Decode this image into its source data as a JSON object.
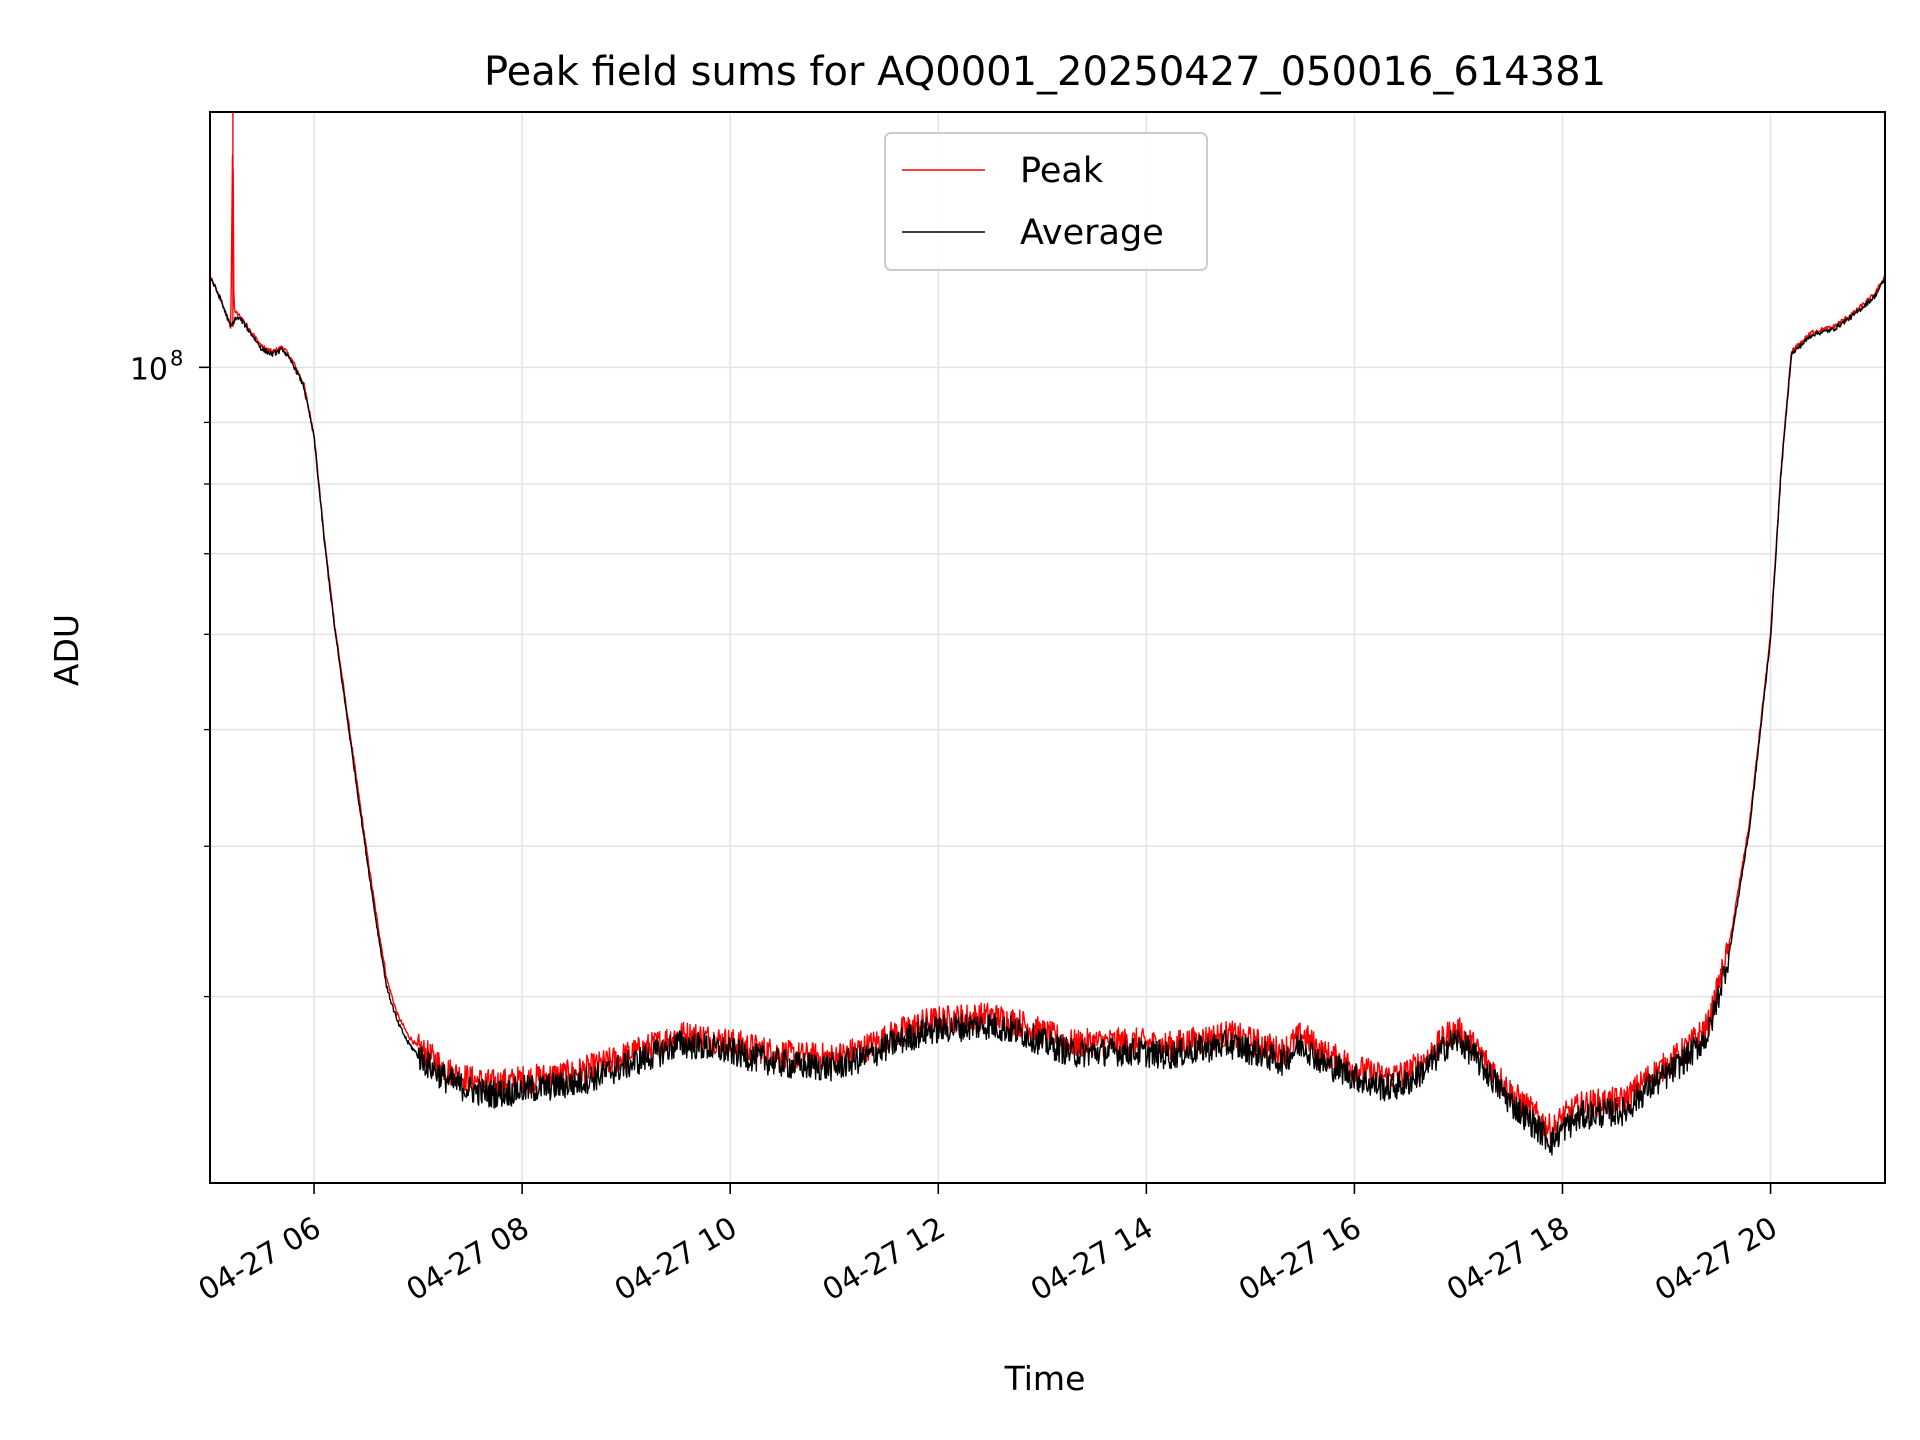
{
  "chart_data": {
    "type": "line",
    "title": "Peak field sums for AQ0001_20250427_050016_614381",
    "xlabel": "Time",
    "ylabel": "ADU",
    "x_unit": "hour of 2025-04-27",
    "xlim": [
      5.0,
      21.1
    ],
    "y_scale": "log",
    "ylim": [
      21000000,
      163000000
    ],
    "x_ticks": [
      {
        "value": 6,
        "label": "04-27 06"
      },
      {
        "value": 8,
        "label": "04-27 08"
      },
      {
        "value": 10,
        "label": "04-27 10"
      },
      {
        "value": 12,
        "label": "04-27 12"
      },
      {
        "value": 14,
        "label": "04-27 14"
      },
      {
        "value": 16,
        "label": "04-27 16"
      },
      {
        "value": 18,
        "label": "04-27 18"
      },
      {
        "value": 20,
        "label": "04-27 20"
      }
    ],
    "y_ticks_major": [
      {
        "value": 100000000,
        "base": "10",
        "exponent": "8"
      }
    ],
    "y_ticks_minor": [
      30000000,
      40000000,
      50000000,
      60000000,
      70000000,
      80000000,
      90000000
    ],
    "grid": true,
    "legend_position": "top-center",
    "series": [
      {
        "name": "Peak",
        "color": "#ff0000",
        "x": [
          5.0,
          5.1,
          5.2,
          5.22,
          5.23,
          5.25,
          5.3,
          5.4,
          5.5,
          5.6,
          5.7,
          5.8,
          5.9,
          6.0,
          6.1,
          6.2,
          6.3,
          6.4,
          6.5,
          6.6,
          6.7,
          6.8,
          6.9,
          7.0,
          7.1,
          7.2,
          7.3,
          7.5,
          7.7,
          7.9,
          8.0,
          8.2,
          8.5,
          8.8,
          9.0,
          9.3,
          9.5,
          9.7,
          10.0,
          10.3,
          10.6,
          11.0,
          11.3,
          11.6,
          11.9,
          12.2,
          12.5,
          12.8,
          13.0,
          13.3,
          13.6,
          13.9,
          14.2,
          14.5,
          14.8,
          15.1,
          15.3,
          15.5,
          15.7,
          15.9,
          16.1,
          16.3,
          16.5,
          16.7,
          16.9,
          17.0,
          17.1,
          17.3,
          17.5,
          17.7,
          17.9,
          18.0,
          18.2,
          18.4,
          18.6,
          18.8,
          19.0,
          19.2,
          19.4,
          19.6,
          19.8,
          20.0,
          20.1,
          20.2,
          20.4,
          20.6,
          20.8,
          21.0,
          21.1
        ],
        "y": [
          119000000,
          114000000,
          108000000,
          160000000,
          112000000,
          111000000,
          110000000,
          107000000,
          104000000,
          103000000,
          104000000,
          101000000,
          97000000,
          88000000,
          72000000,
          61000000,
          53000000,
          46000000,
          40000000,
          35000000,
          31000000,
          29000000,
          27900000,
          27200000,
          26800000,
          26400000,
          26000000,
          25600000,
          25400000,
          25500000,
          25600000,
          25700000,
          25900000,
          26400000,
          26800000,
          27400000,
          27900000,
          27800000,
          27500000,
          27100000,
          26800000,
          26700000,
          27200000,
          28000000,
          28600000,
          28800000,
          28900000,
          28500000,
          28000000,
          27400000,
          27500000,
          27500000,
          27300000,
          27600000,
          27900000,
          27400000,
          27000000,
          27900000,
          26900000,
          26500000,
          26000000,
          25700000,
          25900000,
          26700000,
          27900000,
          28100000,
          27600000,
          26300000,
          25000000,
          24100000,
          23200000,
          23800000,
          24400000,
          24500000,
          24600000,
          25600000,
          26300000,
          27200000,
          28400000,
          33000000,
          42000000,
          60000000,
          82000000,
          103000000,
          107000000,
          108000000,
          111000000,
          115000000,
          119000000
        ]
      },
      {
        "name": "Average",
        "color": "#000000",
        "x": [
          5.0,
          5.1,
          5.2,
          5.25,
          5.3,
          5.4,
          5.5,
          5.6,
          5.7,
          5.8,
          5.9,
          6.0,
          6.1,
          6.2,
          6.3,
          6.4,
          6.5,
          6.6,
          6.7,
          6.8,
          6.9,
          7.0,
          7.1,
          7.2,
          7.3,
          7.5,
          7.7,
          7.9,
          8.0,
          8.2,
          8.5,
          8.8,
          9.0,
          9.3,
          9.5,
          9.7,
          10.0,
          10.3,
          10.6,
          11.0,
          11.3,
          11.6,
          11.9,
          12.2,
          12.5,
          12.8,
          13.0,
          13.3,
          13.6,
          13.9,
          14.2,
          14.5,
          14.8,
          15.1,
          15.3,
          15.5,
          15.7,
          15.9,
          16.1,
          16.3,
          16.5,
          16.7,
          16.9,
          17.0,
          17.1,
          17.3,
          17.5,
          17.7,
          17.9,
          18.0,
          18.2,
          18.4,
          18.6,
          18.8,
          19.0,
          19.2,
          19.4,
          19.6,
          19.8,
          20.0,
          20.1,
          20.2,
          20.4,
          20.6,
          20.8,
          21.0,
          21.1
        ],
        "y": [
          119000000,
          114000000,
          108000000,
          110000000,
          109500000,
          106500000,
          103500000,
          102500000,
          103500000,
          100500000,
          96500000,
          87500000,
          71500000,
          60500000,
          52500000,
          45500000,
          39500000,
          34500000,
          30500000,
          28600000,
          27500000,
          26800000,
          26300000,
          25900000,
          25500000,
          25100000,
          24900000,
          25000000,
          25100000,
          25200000,
          25400000,
          25900000,
          26300000,
          26900000,
          27400000,
          27300000,
          27000000,
          26600000,
          26300000,
          26200000,
          26700000,
          27500000,
          28100000,
          28300000,
          28400000,
          28000000,
          27500000,
          26900000,
          27000000,
          27000000,
          26800000,
          27100000,
          27400000,
          26900000,
          26500000,
          27400000,
          26400000,
          26000000,
          25500000,
          25200000,
          25400000,
          26200000,
          27400000,
          27600000,
          27100000,
          25800000,
          24500000,
          23600000,
          22700000,
          23300000,
          23900000,
          24000000,
          24100000,
          25100000,
          25800000,
          26700000,
          27900000,
          32500000,
          41500000,
          59500000,
          81500000,
          102500000,
          106500000,
          107500000,
          110500000,
          114500000,
          118500000
        ]
      }
    ]
  }
}
